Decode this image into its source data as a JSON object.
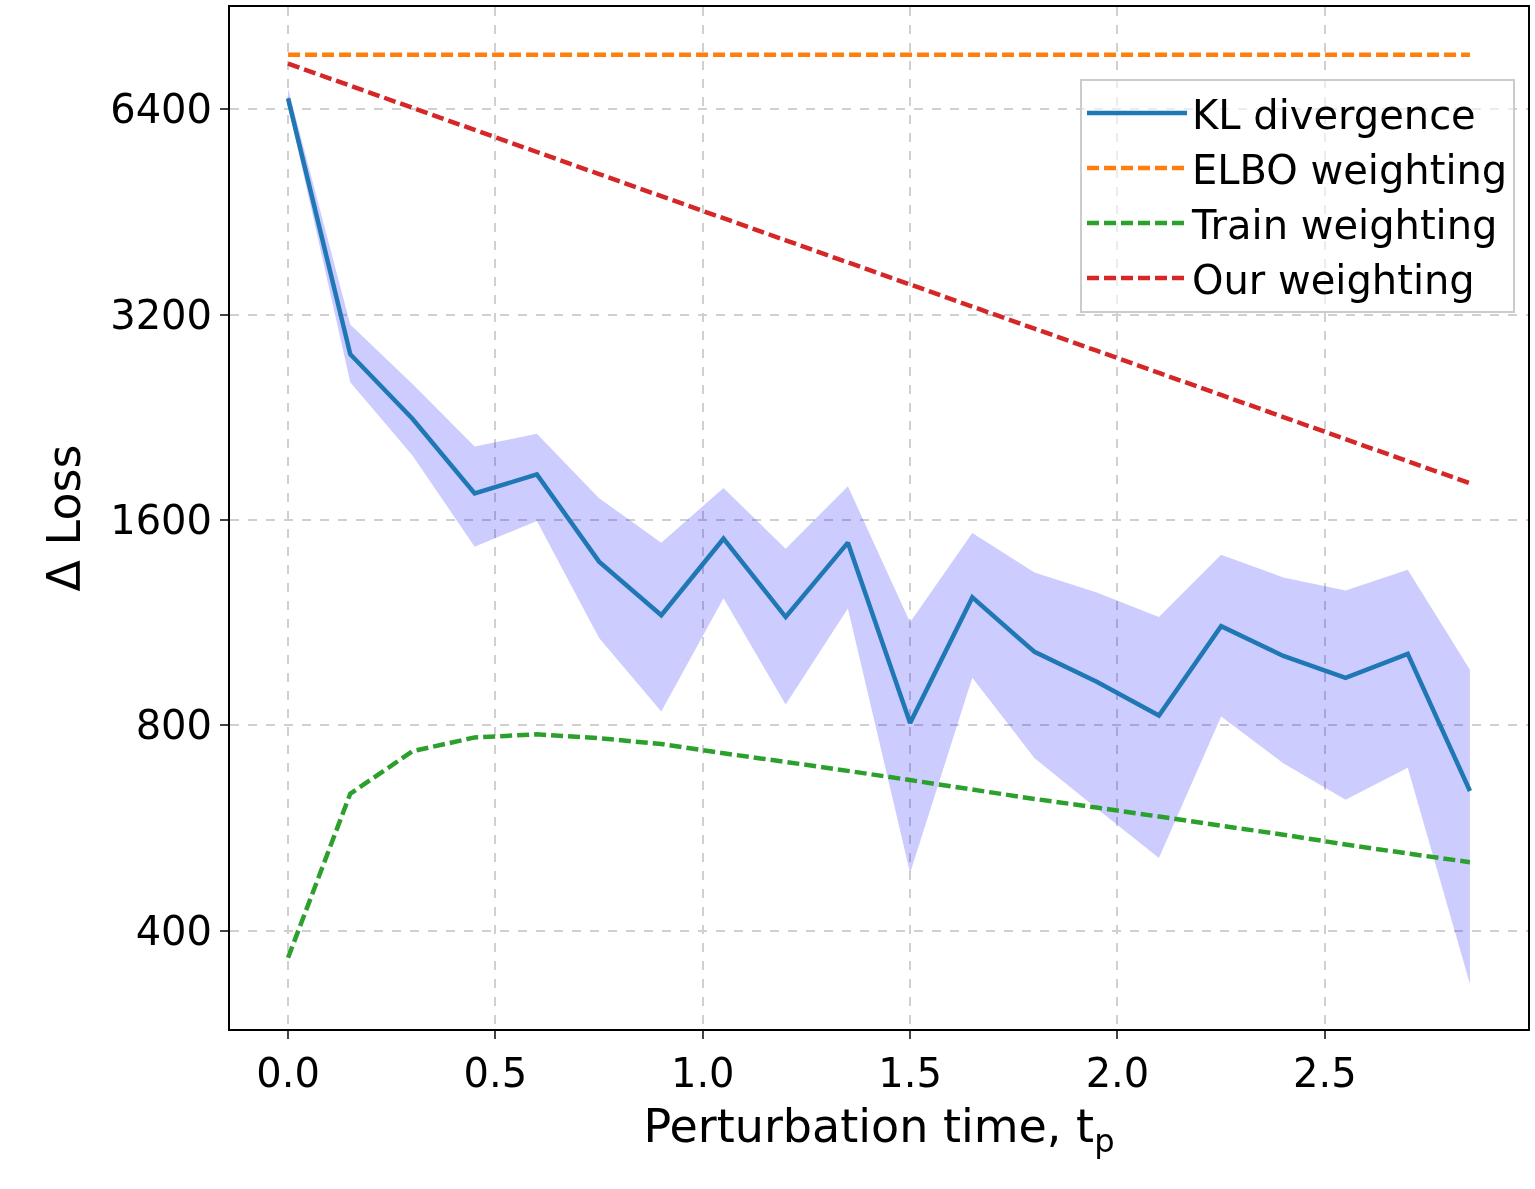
{
  "chart_data": {
    "type": "line",
    "xlabel": "Perturbation time, t$_{p}$",
    "ylabel": "Δ Loss",
    "x": [
      0,
      0.15,
      0.3,
      0.45,
      0.6,
      0.75,
      0.9,
      1.05,
      1.2,
      1.35,
      1.5,
      1.65,
      1.8,
      1.95,
      2.1,
      2.25,
      2.4,
      2.55,
      2.7,
      2.85
    ],
    "series": [
      {
        "name": "KL divergence",
        "color": "#1f77b4",
        "line_style": "solid",
        "values": [
          6640,
          2800,
          2252,
          1750,
          1866,
          1390,
          1160,
          1502,
          1153,
          1482,
          806,
          1232,
          1025,
          927,
          827,
          1118,
          1011,
          939,
          1018,
          641
        ],
        "upper": [
          6866,
          3095,
          2531,
          2050,
          2141,
          1722,
          1482,
          1782,
          1452,
          1793,
          1133,
          1531,
          1340,
          1253,
          1153,
          1423,
          1318,
          1261,
          1353,
          965
        ],
        "lower": [
          6478,
          2548,
          1989,
          1462,
          1595,
          1074,
          838,
          1228,
          858,
          1187,
          486,
          939,
          716,
          604,
          511,
          824,
          704,
          622,
          693,
          334
        ]
      },
      {
        "name": "ELBO weighting",
        "color": "#ff7f0e",
        "line_style": "dashed",
        "values": [
          7695,
          7695,
          7695,
          7695,
          7695,
          7695,
          7695,
          7695,
          7695,
          7695,
          7695,
          7695,
          7695,
          7695,
          7695,
          7695,
          7695,
          7695,
          7695,
          7695
        ]
      },
      {
        "name": "Train weighting",
        "color": "#2ca02c",
        "line_style": "dashed",
        "values": [
          365,
          635,
          733,
          768,
          776,
          766,
          751,
          728,
          707,
          686,
          665,
          644,
          624,
          606,
          588,
          570,
          553,
          535,
          519,
          504
        ]
      },
      {
        "name": "Our weighting",
        "color": "#d62728",
        "line_style": "dashed",
        "values": [
          7467,
          6931,
          6433,
          5970,
          5541,
          5143,
          4774,
          4431,
          4113,
          3817,
          3543,
          3288,
          3052,
          2833,
          2629,
          2440,
          2265,
          2102,
          1951,
          1811
        ]
      }
    ],
    "log": "y",
    "xlim": [
      -0.14,
      2.99
    ],
    "ylim": [
      287,
      9040
    ],
    "xticks": [
      {
        "value": 0,
        "label": "0.0"
      },
      {
        "value": 0.5,
        "label": "0.5"
      },
      {
        "value": 1,
        "label": "1.0"
      },
      {
        "value": 1.5,
        "label": "1.5"
      },
      {
        "value": 2,
        "label": "2.0"
      },
      {
        "value": 2.5,
        "label": "2.5"
      }
    ],
    "yticks": [
      400,
      800,
      1600,
      3200,
      6400
    ],
    "grid": true,
    "legend": "top right"
  }
}
